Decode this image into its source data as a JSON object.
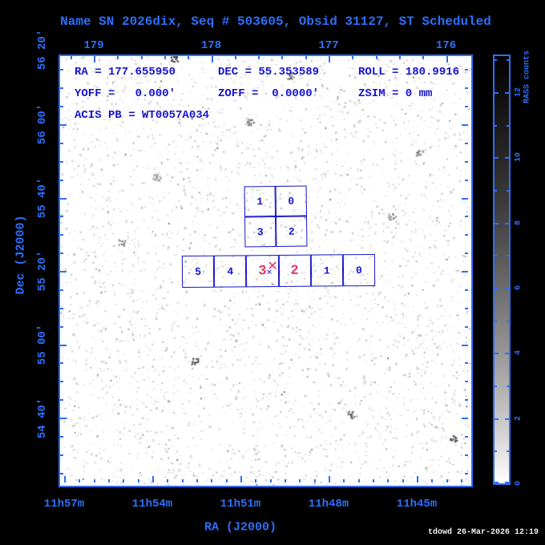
{
  "header": {
    "title": "Name SN 2026dix, Seq # 503605, Obsid 31127, ST Scheduled"
  },
  "colors": {
    "accent_blue": "#2e6ffa",
    "annotation_blue": "#1414cf",
    "highlight_red": "#dd3a6b",
    "sky_white": "#ffffff",
    "background_black": "#000000",
    "credit_white": "#f2f2f2"
  },
  "plot": {
    "info_rows": [
      [
        "RA = 177.655950",
        "DEC = 55.353589",
        "ROLL = 180.9916"
      ],
      [
        "YOFF =   0.000'",
        "ZOFF =  0.0000'",
        "ZSIM = 0 mm"
      ],
      [
        "ACIS PB = WT0057A034"
      ]
    ]
  },
  "axes": {
    "top": {
      "ticks": [
        "179",
        "178",
        "177",
        "176"
      ]
    },
    "bottom": {
      "label": "RA (J2000)",
      "ticks": [
        "11h57m",
        "11h54m",
        "11h51m",
        "11h48m",
        "11h45m"
      ]
    },
    "left": {
      "label": "Dec (J2000)",
      "ticks": [
        "56 20'",
        "56 00'",
        "55 40'",
        "55 20'",
        "55 00'",
        "54 40'"
      ]
    }
  },
  "colorbar": {
    "label": "RASS counts",
    "ticks": [
      "12",
      "10",
      "8",
      "6",
      "4",
      "2",
      "0"
    ]
  },
  "chips": {
    "acis_i_labels": [
      "1",
      "0",
      "3",
      "2"
    ],
    "acis_s_labels": [
      "5",
      "4",
      "3",
      "2",
      "1",
      "0"
    ],
    "acis_s_highlighted_indices": [
      2,
      3
    ],
    "aimpoint_marker": "✕",
    "target_marker": "✕"
  },
  "footer": {
    "credit": "tdowd 26-Mar-2026 12:19"
  },
  "chart_data": {
    "type": "heatmap",
    "description": "ROSAT All-Sky Survey grayscale sky image with Chandra ACIS field-of-view overlay",
    "title": "Name SN 2026dix, Seq # 503605, Obsid 31127, ST Scheduled",
    "xlabel": "RA (J2000)",
    "ylabel": "Dec (J2000)",
    "x_ticks_deg": [
      179,
      178,
      177,
      176
    ],
    "x_ticks_time": [
      "11h57m",
      "11h54m",
      "11h51m",
      "11h48m",
      "11h45m"
    ],
    "y_ticks_dec": [
      "56 20'",
      "56 00'",
      "55 40'",
      "55 20'",
      "55 00'",
      "54 40'"
    ],
    "colorbar": {
      "label": "RASS counts",
      "tick_values": [
        0,
        2,
        4,
        6,
        8,
        10,
        12
      ],
      "min": 0,
      "max": 13
    },
    "pointing": {
      "ra_deg": 177.65595,
      "dec_deg": 55.353589,
      "roll_deg": 180.9916,
      "yoff_arcmin": 0.0,
      "zoff_arcmin": 0.0,
      "zsim_mm": 0,
      "acis_pb": "WT0057A034"
    },
    "overlay": {
      "acis_i_chips": [
        "1",
        "0",
        "3",
        "2"
      ],
      "acis_s_chips": [
        "5",
        "4",
        "3",
        "2",
        "1",
        "0"
      ],
      "active_chips": [
        "3",
        "2"
      ]
    }
  }
}
